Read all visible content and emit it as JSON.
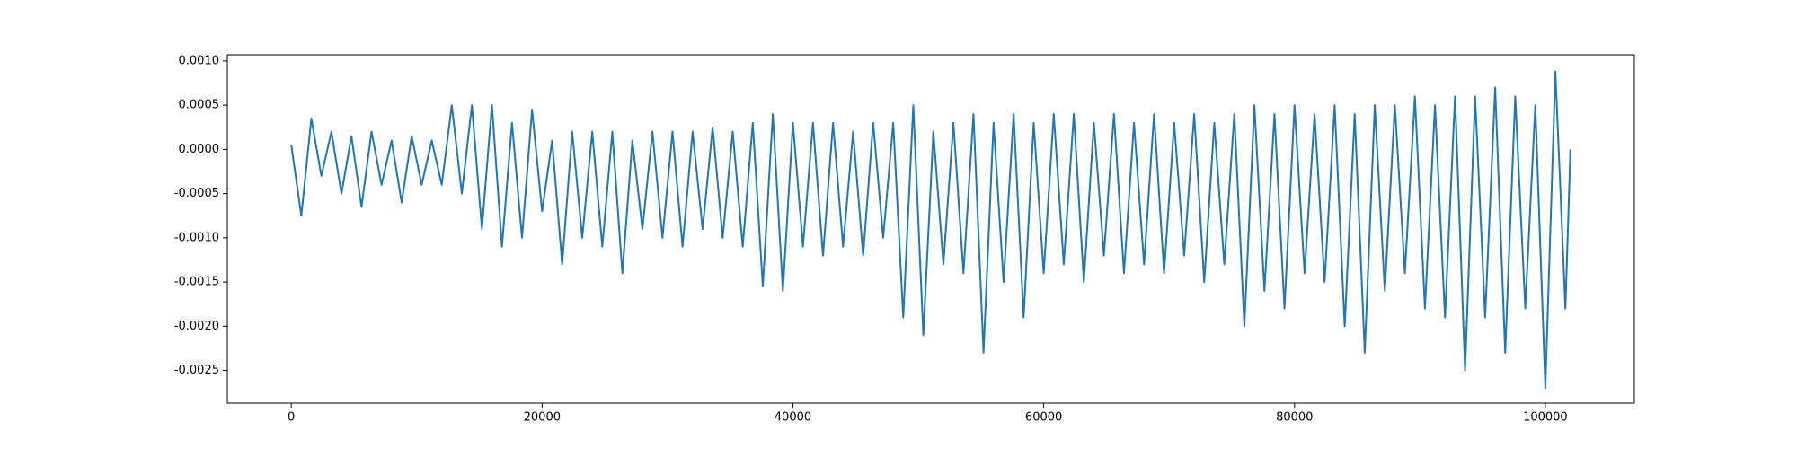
{
  "chart_data": {
    "type": "line",
    "color": "#1f77b4",
    "grid": false,
    "xlim": [
      -5100,
      107100
    ],
    "ylim": [
      -0.00287,
      0.00107
    ],
    "xticks": [
      0,
      20000,
      40000,
      60000,
      80000,
      100000
    ],
    "yticks": [
      {
        "value": 0.001,
        "label": "0.0010"
      },
      {
        "value": 0.0005,
        "label": "0.0005"
      },
      {
        "value": 0,
        "label": "0.0000"
      },
      {
        "value": -0.0005,
        "label": "-0.0005"
      },
      {
        "value": -0.001,
        "label": "-0.0010"
      },
      {
        "value": -0.0015,
        "label": "-0.0015"
      },
      {
        "value": -0.002,
        "label": "-0.0020"
      },
      {
        "value": -0.0025,
        "label": "-0.0025"
      }
    ],
    "x": [
      0,
      800,
      1600,
      2400,
      3200,
      4000,
      4800,
      5600,
      6400,
      7200,
      8000,
      8800,
      9600,
      10400,
      11200,
      12000,
      12800,
      13600,
      14400,
      15200,
      16000,
      16800,
      17600,
      18400,
      19200,
      20000,
      20800,
      21600,
      22400,
      23200,
      24000,
      24800,
      25600,
      26400,
      27200,
      28000,
      28800,
      29600,
      30400,
      31200,
      32000,
      32800,
      33600,
      34400,
      35200,
      36000,
      36800,
      37600,
      38400,
      39200,
      40000,
      40800,
      41600,
      42400,
      43200,
      44000,
      44800,
      45600,
      46400,
      47200,
      48000,
      48800,
      49600,
      50400,
      51200,
      52000,
      52800,
      53600,
      54400,
      55200,
      56000,
      56800,
      57600,
      58400,
      59200,
      60000,
      60800,
      61600,
      62400,
      63200,
      64000,
      64800,
      65600,
      66400,
      67200,
      68000,
      68800,
      69600,
      70400,
      71200,
      72000,
      72800,
      73600,
      74400,
      75200,
      76000,
      76800,
      77600,
      78400,
      79200,
      80000,
      80800,
      81600,
      82400,
      83200,
      84000,
      84800,
      85600,
      86400,
      87200,
      88000,
      88800,
      89600,
      90400,
      91200,
      92000,
      92800,
      93600,
      94400,
      95200,
      96000,
      96800,
      97600,
      98400,
      99200,
      100000,
      100800,
      101600,
      102000
    ],
    "values": [
      5e-05,
      -0.00075,
      0.00035,
      -0.0003,
      0.0002,
      -0.0005,
      0.00015,
      -0.00065,
      0.0002,
      -0.0004,
      0.0001,
      -0.0006,
      0.00015,
      -0.0004,
      0.0001,
      -0.0004,
      0.0005,
      -0.0005,
      0.0005,
      -0.0009,
      0.0005,
      -0.0011,
      0.0003,
      -0.001,
      0.00045,
      -0.0007,
      0.0001,
      -0.0013,
      0.0002,
      -0.001,
      0.0002,
      -0.0011,
      0.0002,
      -0.0014,
      0.0001,
      -0.0009,
      0.0002,
      -0.001,
      0.0002,
      -0.0011,
      0.0002,
      -0.0009,
      0.00025,
      -0.001,
      0.0002,
      -0.0011,
      0.0003,
      -0.00155,
      0.0004,
      -0.0016,
      0.0003,
      -0.0011,
      0.0003,
      -0.0012,
      0.0003,
      -0.0011,
      0.0002,
      -0.0012,
      0.0003,
      -0.001,
      0.0003,
      -0.0019,
      0.0005,
      -0.0021,
      0.0002,
      -0.0013,
      0.0003,
      -0.0014,
      0.0004,
      -0.0023,
      0.0003,
      -0.0015,
      0.0004,
      -0.0019,
      0.0003,
      -0.0014,
      0.0004,
      -0.0013,
      0.0004,
      -0.0015,
      0.0003,
      -0.0012,
      0.0004,
      -0.0014,
      0.0003,
      -0.0013,
      0.0004,
      -0.0014,
      0.0003,
      -0.0012,
      0.0004,
      -0.0015,
      0.0003,
      -0.0013,
      0.0004,
      -0.002,
      0.0005,
      -0.0016,
      0.0004,
      -0.0018,
      0.0005,
      -0.0014,
      0.0004,
      -0.0015,
      0.0005,
      -0.002,
      0.0004,
      -0.0023,
      0.0005,
      -0.0016,
      0.0005,
      -0.0014,
      0.0006,
      -0.0018,
      0.0005,
      -0.0019,
      0.0006,
      -0.0025,
      0.0006,
      -0.0019,
      0.0007,
      -0.0023,
      0.0006,
      -0.0018,
      0.0005,
      -0.0027,
      0.00088,
      -0.0018,
      0.0
    ]
  }
}
